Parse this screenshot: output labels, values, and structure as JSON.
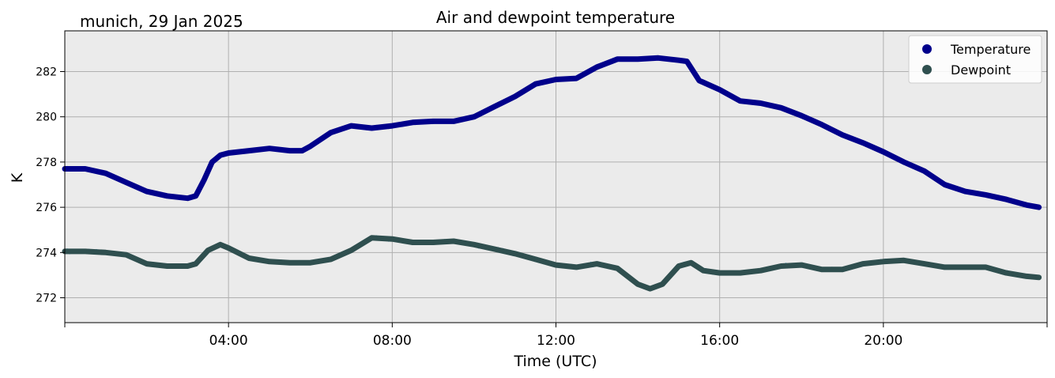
{
  "chart_data": {
    "type": "line",
    "title": "Air and dewpoint temperature",
    "subtitle": "munich, 29 Jan 2025",
    "xlabel": "Time (UTC)",
    "ylabel": "K",
    "xlim": [
      0,
      24
    ],
    "ylim": [
      270.9,
      283.8
    ],
    "grid": true,
    "legend_position": "top-right",
    "x_ticks": [
      {
        "value": 4,
        "label": "04:00"
      },
      {
        "value": 8,
        "label": "08:00"
      },
      {
        "value": 12,
        "label": "12:00"
      },
      {
        "value": 16,
        "label": "16:00"
      },
      {
        "value": 20,
        "label": "20:00"
      }
    ],
    "y_ticks": [
      {
        "value": 272,
        "label": "272"
      },
      {
        "value": 274,
        "label": "274"
      },
      {
        "value": 276,
        "label": "276"
      },
      {
        "value": 278,
        "label": "278"
      },
      {
        "value": 280,
        "label": "280"
      },
      {
        "value": 282,
        "label": "282"
      }
    ],
    "colors": {
      "plot_background": "#ebebeb",
      "grid": "#b0b0b0",
      "temperature_marker": "#00008b",
      "temperature_raw": "#7fa8a8",
      "dewpoint_marker": "#2f4f4f",
      "dewpoint_raw": "#1e9ae0"
    },
    "series": [
      {
        "name": "Temperature",
        "x": [
          0,
          0.35,
          0.5,
          1.0,
          1.5,
          2.0,
          2.5,
          3.0,
          3.2,
          3.4,
          3.6,
          3.8,
          4.0,
          4.5,
          5.0,
          5.5,
          5.8,
          6.0,
          6.5,
          7.0,
          7.5,
          8.0,
          8.5,
          9.0,
          9.5,
          10.0,
          10.5,
          11.0,
          11.5,
          12.0,
          12.5,
          13.0,
          13.5,
          14.0,
          14.5,
          15.0,
          15.2,
          15.5,
          16.0,
          16.5,
          17.0,
          17.5,
          18.0,
          18.5,
          19.0,
          19.5,
          20.0,
          20.5,
          21.0,
          21.5,
          22.0,
          22.5,
          23.0,
          23.5,
          23.8
        ],
        "values": [
          277.7,
          277.7,
          277.7,
          277.5,
          277.1,
          276.7,
          276.5,
          276.4,
          276.5,
          277.2,
          278.0,
          278.3,
          278.4,
          278.5,
          278.6,
          278.5,
          278.5,
          278.7,
          279.3,
          279.6,
          279.5,
          279.6,
          279.75,
          279.8,
          279.8,
          280.0,
          280.45,
          280.9,
          281.45,
          281.65,
          281.7,
          282.2,
          282.55,
          282.55,
          282.6,
          282.5,
          282.45,
          281.6,
          281.2,
          280.7,
          280.6,
          280.4,
          280.05,
          279.65,
          279.2,
          278.85,
          278.45,
          278.0,
          277.6,
          277.0,
          276.7,
          276.55,
          276.35,
          276.1,
          276.0
        ]
      },
      {
        "name": "Dewpoint",
        "x": [
          0,
          0.35,
          0.5,
          1.0,
          1.5,
          2.0,
          2.5,
          3.0,
          3.2,
          3.5,
          3.8,
          4.0,
          4.5,
          5.0,
          5.5,
          6.0,
          6.5,
          7.0,
          7.5,
          8.0,
          8.5,
          9.0,
          9.5,
          10.0,
          10.5,
          11.0,
          11.5,
          12.0,
          12.5,
          13.0,
          13.5,
          14.0,
          14.3,
          14.6,
          15.0,
          15.3,
          15.6,
          16.0,
          16.5,
          17.0,
          17.5,
          18.0,
          18.5,
          19.0,
          19.5,
          20.0,
          20.5,
          21.0,
          21.5,
          22.0,
          22.5,
          23.0,
          23.5,
          23.8
        ],
        "values": [
          274.05,
          274.05,
          274.05,
          274.0,
          273.9,
          273.5,
          273.4,
          273.4,
          273.5,
          274.1,
          274.35,
          274.2,
          273.75,
          273.6,
          273.55,
          273.55,
          273.7,
          274.1,
          274.65,
          274.6,
          274.45,
          274.45,
          274.5,
          274.35,
          274.15,
          273.95,
          273.7,
          273.45,
          273.35,
          273.5,
          273.3,
          272.6,
          272.4,
          272.6,
          273.4,
          273.55,
          273.2,
          273.1,
          273.1,
          273.2,
          273.4,
          273.45,
          273.25,
          273.25,
          273.5,
          273.6,
          273.65,
          273.5,
          273.35,
          273.35,
          273.35,
          273.1,
          272.95,
          272.9
        ]
      }
    ]
  }
}
